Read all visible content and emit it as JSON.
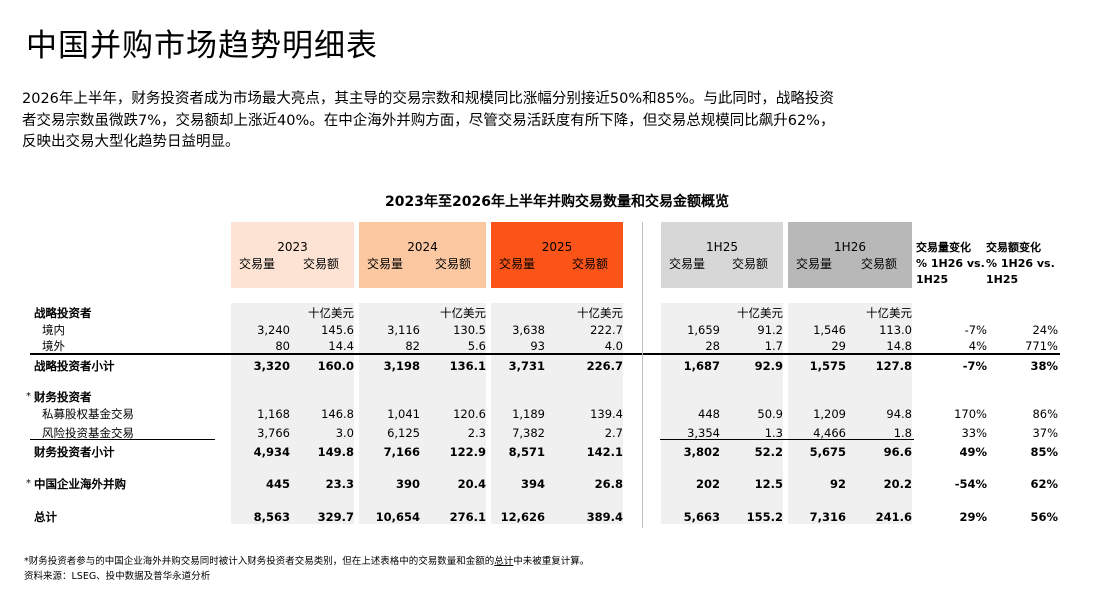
{
  "page": {
    "title": "中国并购市场趋势明细表",
    "intro_lines": [
      "2026年上半年，财务投资者成为市场最大亮点，其主导的交易宗数和规模同比涨幅分别接近50%和85%。与此同时，战略投资",
      "者交易宗数虽微跌7%，交易额却上涨近40%。在中企海外并购方面，尽管交易活跃度有所下降，但交易总规模同比飙升62%，",
      "反映出交易大型化趋势日益明显。"
    ]
  },
  "table": {
    "title": "2023年至2026年上半年并购交易数量和交易金额概览",
    "period_colors": [
      "#fde3d3",
      "#fcc8a2",
      "#fb5418",
      "#d7d7d7",
      "#b8b8b8"
    ],
    "periods": [
      {
        "label": "2023",
        "vol": "交易量",
        "val": "交易额",
        "unit": "十亿美元"
      },
      {
        "label": "2024",
        "vol": "交易量",
        "val": "交易额",
        "unit": "十亿美元"
      },
      {
        "label": "2025",
        "vol": "交易量",
        "val": "交易额",
        "unit": "十亿美元"
      },
      {
        "label": "1H25",
        "vol": "交易量",
        "val": "交易额",
        "unit": "十亿美元"
      },
      {
        "label": "1H26",
        "vol": "交易量",
        "val": "交易额",
        "unit": "十亿美元"
      }
    ],
    "change_headers": {
      "volume": [
        "交易量变化",
        "% 1H26 vs.",
        "1H25"
      ],
      "value": [
        "交易额变化",
        "% 1H26 vs.",
        "1H25"
      ]
    },
    "rows": {
      "strategic_header": {
        "label": "战略投资者"
      },
      "domestic": {
        "label": "境内",
        "cells": [
          "3,240",
          "145.6",
          "3,116",
          "130.5",
          "3,638",
          "222.7",
          "1,659",
          "91.2",
          "1,546",
          "113.0"
        ],
        "vol_change": "-7%",
        "val_change": "24%"
      },
      "overseas": {
        "label": "境外",
        "cells": [
          "80",
          "14.4",
          "82",
          "5.6",
          "93",
          "4.0",
          "28",
          "1.7",
          "29",
          "14.8"
        ],
        "vol_change": "4%",
        "val_change": "771%"
      },
      "strategic_subtotal": {
        "label": "战略投资者小计",
        "cells": [
          "3,320",
          "160.0",
          "3,198",
          "136.1",
          "3,731",
          "226.7",
          "1,687",
          "92.9",
          "1,575",
          "127.8"
        ],
        "vol_change": "-7%",
        "val_change": "38%"
      },
      "financial_header": {
        "label": "财务投资者",
        "marker": "*"
      },
      "pe": {
        "label": "私募股权基金交易",
        "cells": [
          "1,168",
          "146.8",
          "1,041",
          "120.6",
          "1,189",
          "139.4",
          "448",
          "50.9",
          "1,209",
          "94.8"
        ],
        "vol_change": "170%",
        "val_change": "86%"
      },
      "vc": {
        "label": "风险投资基金交易",
        "cells": [
          "3,766",
          "3.0",
          "6,125",
          "2.3",
          "7,382",
          "2.7",
          "3,354",
          "1.3",
          "4,466",
          "1.8"
        ],
        "vol_change": "33%",
        "val_change": "37%"
      },
      "financial_subtotal": {
        "label": "财务投资者小计",
        "cells": [
          "4,934",
          "149.8",
          "7,166",
          "122.9",
          "8,571",
          "142.1",
          "3,802",
          "52.2",
          "5,675",
          "96.6"
        ],
        "vol_change": "49%",
        "val_change": "85%"
      },
      "outbound": {
        "label": "中国企业海外并购",
        "marker": "*",
        "cells": [
          "445",
          "23.3",
          "390",
          "20.4",
          "394",
          "26.8",
          "202",
          "12.5",
          "92",
          "20.2"
        ],
        "vol_change": "-54%",
        "val_change": "62%"
      },
      "total": {
        "label": "总计",
        "cells": [
          "8,563",
          "329.7",
          "10,654",
          "276.1",
          "12,626",
          "389.4",
          "5,663",
          "155.2",
          "7,316",
          "241.6"
        ],
        "vol_change": "29%",
        "val_change": "56%"
      }
    }
  },
  "footnote": {
    "before": "*财务投资者参与的中国企业海外并购交易同时被计入财务投资者交易类别，但在上述表格中的交易数量和金额的",
    "underlined": "总计",
    "after": "中未被重复计算。"
  },
  "source": "资料来源：LSEG、投中数据及普华永道分析"
}
